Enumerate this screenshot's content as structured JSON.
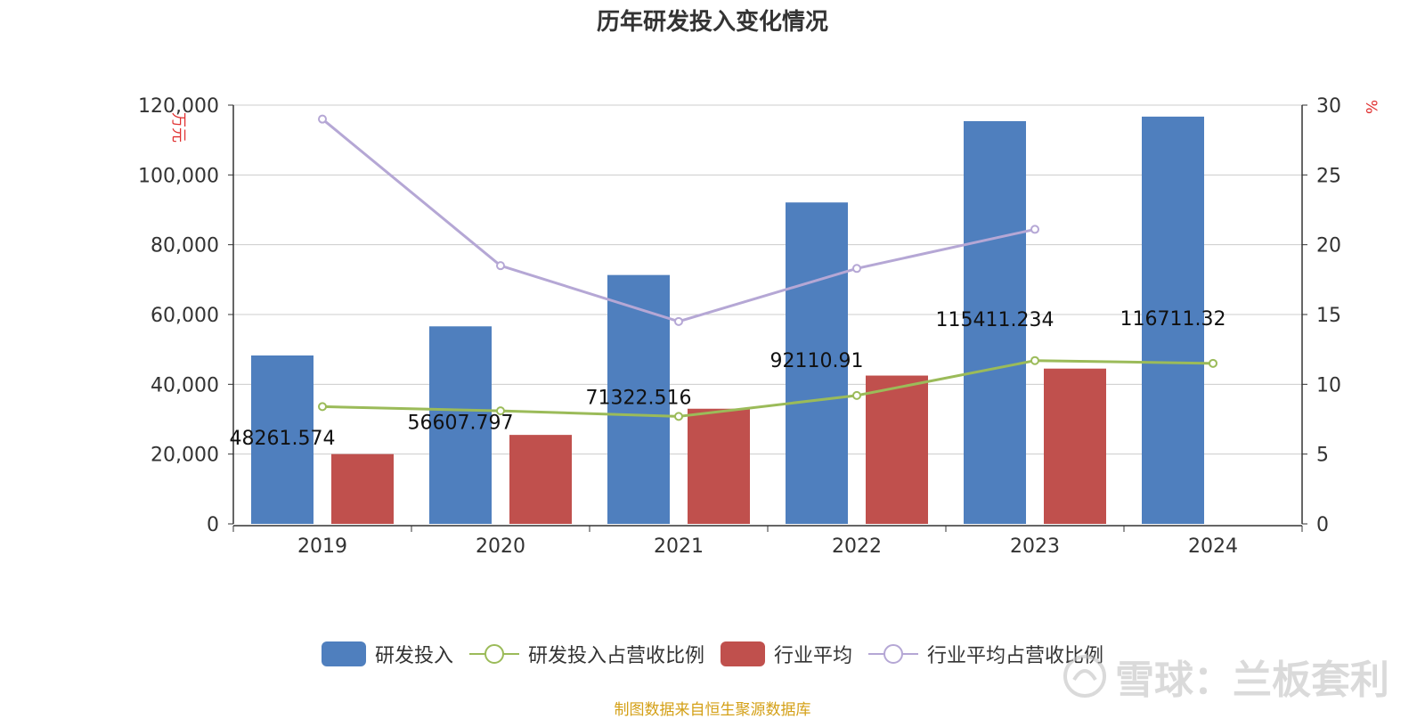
{
  "chart_data": {
    "type": "bar",
    "title": "历年研发投入变化情况",
    "categories": [
      "2019",
      "2020",
      "2021",
      "2022",
      "2023",
      "2024"
    ],
    "series": [
      {
        "name": "研发投入",
        "type": "bar",
        "axis": "left",
        "color": "#4f7fbe",
        "values": [
          48261.574,
          56607.797,
          71322.516,
          92110.91,
          115411.234,
          116711.32
        ],
        "labels": [
          "48261.574",
          "56607.797",
          "71322.516",
          "92110.91",
          "115411.234",
          "116711.32"
        ]
      },
      {
        "name": "研发投入占营收比例",
        "type": "line",
        "axis": "right",
        "color": "#9bbb59",
        "values": [
          8.4,
          8.1,
          7.7,
          9.2,
          11.7,
          11.5
        ]
      },
      {
        "name": "行业平均",
        "type": "bar",
        "axis": "left",
        "color": "#c0504d",
        "values": [
          20000,
          25500,
          33000,
          42500,
          44500,
          null
        ]
      },
      {
        "name": "行业平均占营收比例",
        "type": "line",
        "axis": "right",
        "color": "#b5a7d5",
        "values": [
          29.0,
          18.5,
          14.5,
          18.3,
          21.1,
          null
        ]
      }
    ],
    "y_left": {
      "label": "万元",
      "ticks": [
        "0",
        "20,000",
        "40,000",
        "60,000",
        "80,000",
        "100,000",
        "120,000"
      ],
      "lim": [
        0,
        120000
      ]
    },
    "y_right": {
      "label": "%",
      "ticks": [
        "0",
        "5",
        "10",
        "15",
        "20",
        "25",
        "30"
      ],
      "lim": [
        0,
        30
      ]
    },
    "grid": true,
    "legend_position": "bottom"
  },
  "legend": [
    {
      "label": "研发投入",
      "kind": "bar",
      "color": "#4f7fbe"
    },
    {
      "label": "研发投入占营收比例",
      "kind": "line",
      "color": "#9bbb59"
    },
    {
      "label": "行业平均",
      "kind": "bar",
      "color": "#c0504d"
    },
    {
      "label": "行业平均占营收比例",
      "kind": "line",
      "color": "#b5a7d5"
    }
  ],
  "source_note": "制图数据来自恒生聚源数据库",
  "watermark": {
    "text": "雪球：兰板套利",
    "icon": "snowball-logo-icon"
  }
}
